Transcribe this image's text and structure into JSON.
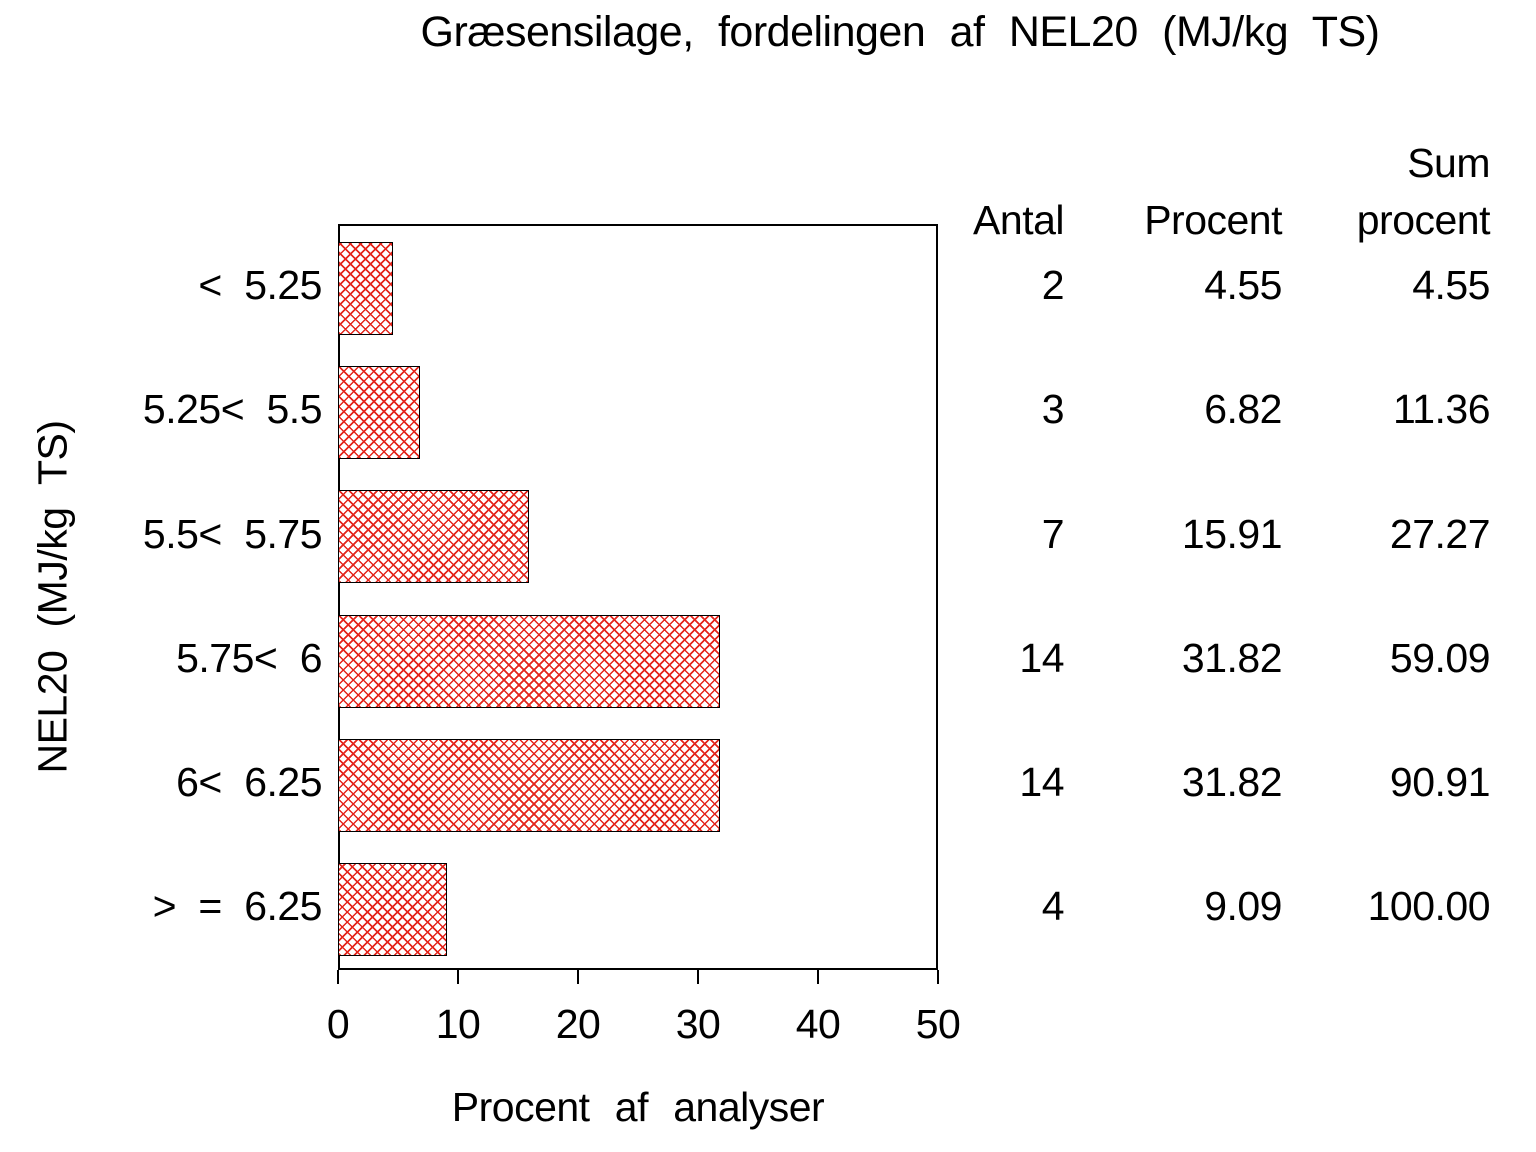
{
  "title": "Græsensilage, fordelingen af NEL20 (MJ/kg TS)",
  "colors": {
    "bar_red": "#e4251c",
    "text": "#000000",
    "background": "#ffffff"
  },
  "chart_data": {
    "type": "bar",
    "orientation": "horizontal",
    "title": "Græsensilage, fordelingen af NEL20 (MJ/kg TS)",
    "xlabel": "Procent af analyser",
    "ylabel": "NEL20 (MJ/kg TS)",
    "categories": [
      "< 5.25",
      "5.25< 5.5",
      "5.5< 5.75",
      "5.75< 6",
      "6< 6.25",
      "> = 6.25"
    ],
    "values": [
      4.55,
      6.82,
      15.91,
      31.82,
      31.82,
      9.09
    ],
    "counts": [
      2,
      3,
      7,
      14,
      14,
      4
    ],
    "cum_percent": [
      4.55,
      11.36,
      27.27,
      59.09,
      90.91,
      100.0
    ],
    "xlim": [
      0,
      50
    ],
    "xticks": [
      "0",
      "10",
      "20",
      "30",
      "40",
      "50"
    ],
    "grid": false,
    "legend": "none",
    "bar_pattern": "red-crosshatch"
  },
  "table": {
    "headers": {
      "antal": "Antal",
      "procent": "Procent",
      "sum_line1": "Sum",
      "sum_line2": "procent"
    },
    "rows": [
      {
        "antal": "2",
        "procent": "4.55",
        "sum": "4.55"
      },
      {
        "antal": "3",
        "procent": "6.82",
        "sum": "11.36"
      },
      {
        "antal": "7",
        "procent": "15.91",
        "sum": "27.27"
      },
      {
        "antal": "14",
        "procent": "31.82",
        "sum": "59.09"
      },
      {
        "antal": "14",
        "procent": "31.82",
        "sum": "90.91"
      },
      {
        "antal": "4",
        "procent": "9.09",
        "sum": "100.00"
      }
    ]
  }
}
